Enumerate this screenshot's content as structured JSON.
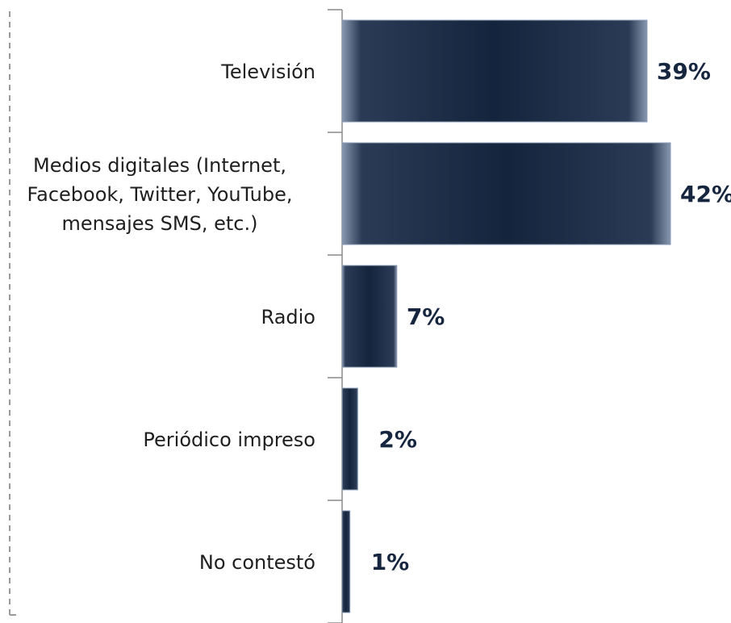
{
  "chart_data": {
    "type": "bar",
    "orientation": "horizontal",
    "categories": [
      [
        "Televisión"
      ],
      [
        "Medios digitales (Internet,",
        "Facebook, Twitter, YouTube,",
        "mensajes SMS, etc.)"
      ],
      [
        "Radio"
      ],
      [
        "Periódico impreso"
      ],
      [
        "No contestó"
      ]
    ],
    "values": [
      39,
      42,
      7,
      2,
      1
    ],
    "value_labels": [
      "39%",
      "42%",
      "7%",
      "2%",
      "1%"
    ],
    "xlim": [
      0,
      44
    ],
    "grid": false,
    "legend": "none",
    "colors": {
      "bar": "#14243d",
      "bar_edge": "#8898b0",
      "axis": "#8a8a8a",
      "value_text": "#17263f",
      "category_text": "#1f1f1f",
      "frame": "#9a9a9a"
    }
  }
}
